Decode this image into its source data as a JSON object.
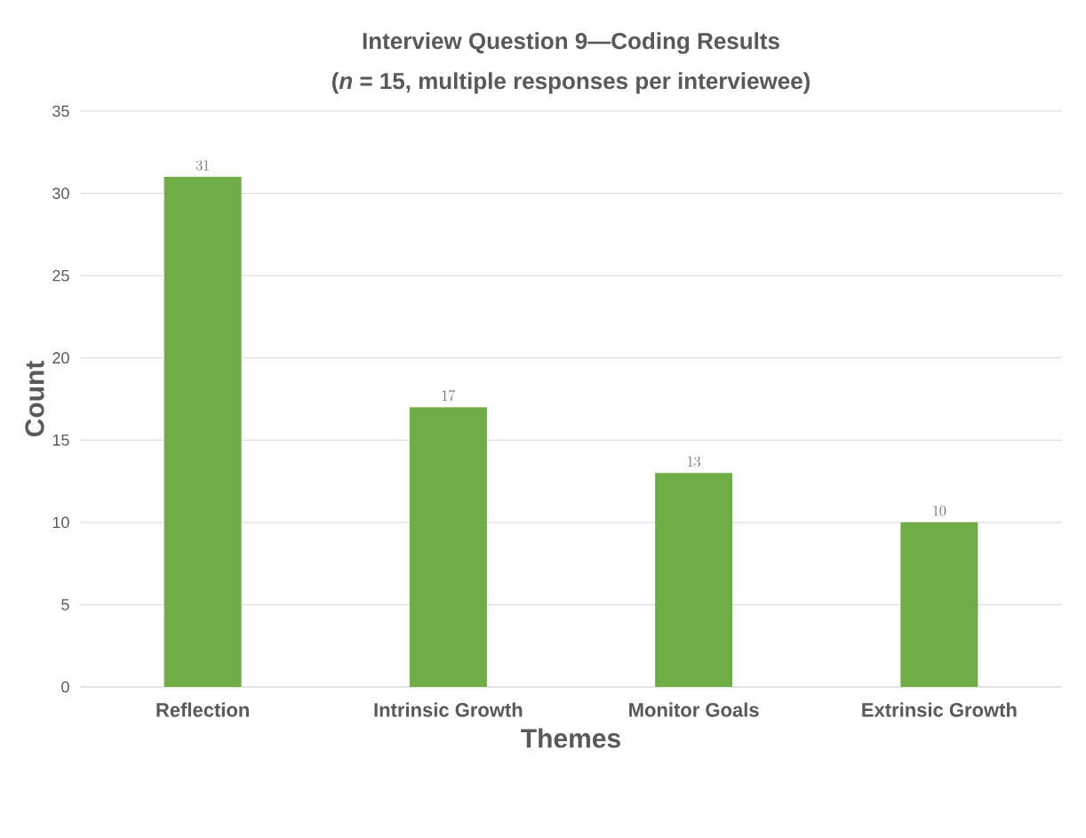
{
  "chart_data": {
    "type": "bar",
    "title": "Interview Question 9—Coding Results",
    "subtitle": "(*n* = 15, multiple responses per interviewee)",
    "xlabel": "Themes",
    "ylabel": "Count",
    "categories": [
      "Reflection",
      "Intrinsic Growth",
      "Monitor Goals",
      "Extrinsic Growth"
    ],
    "values": [
      31,
      17,
      13,
      10
    ],
    "color": "#70ad47",
    "ylim": [
      0,
      35
    ],
    "yticks": [
      0,
      5,
      10,
      15,
      20,
      25,
      30,
      35
    ],
    "grid": "y",
    "data_labels": true
  }
}
